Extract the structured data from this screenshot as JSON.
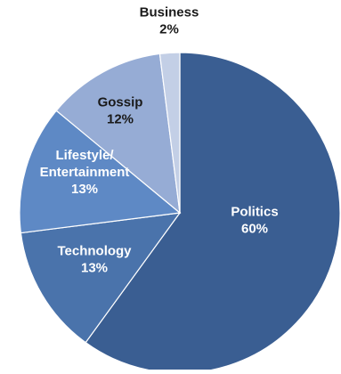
{
  "chart_data": {
    "type": "pie",
    "title": "",
    "slices": [
      {
        "category": "Politics",
        "label_lines": [
          "Politics"
        ],
        "value": 60,
        "value_label": "60%",
        "color": "#3a5e92",
        "label_color": "#ffffff"
      },
      {
        "category": "Technology",
        "label_lines": [
          "Technology"
        ],
        "value": 13,
        "value_label": "13%",
        "color": "#4a73ab",
        "label_color": "#ffffff"
      },
      {
        "category": "Lifestyle/ Entertainment",
        "label_lines": [
          "Lifestyle/",
          "Entertainment"
        ],
        "value": 13,
        "value_label": "13%",
        "color": "#5e89c5",
        "label_color": "#ffffff"
      },
      {
        "category": "Gossip",
        "label_lines": [
          "Gossip"
        ],
        "value": 12,
        "value_label": "12%",
        "color": "#96acd5",
        "label_color": "#1a1a1a"
      },
      {
        "category": "Business",
        "label_lines": [
          "Business"
        ],
        "value": 2,
        "value_label": "2%",
        "color": "#c3cfe6",
        "label_color": "#1a1a1a"
      }
    ],
    "start_angle_deg": 0,
    "direction": "clockwise",
    "label_position": "inside; small slice label outside above",
    "legend": "none"
  }
}
